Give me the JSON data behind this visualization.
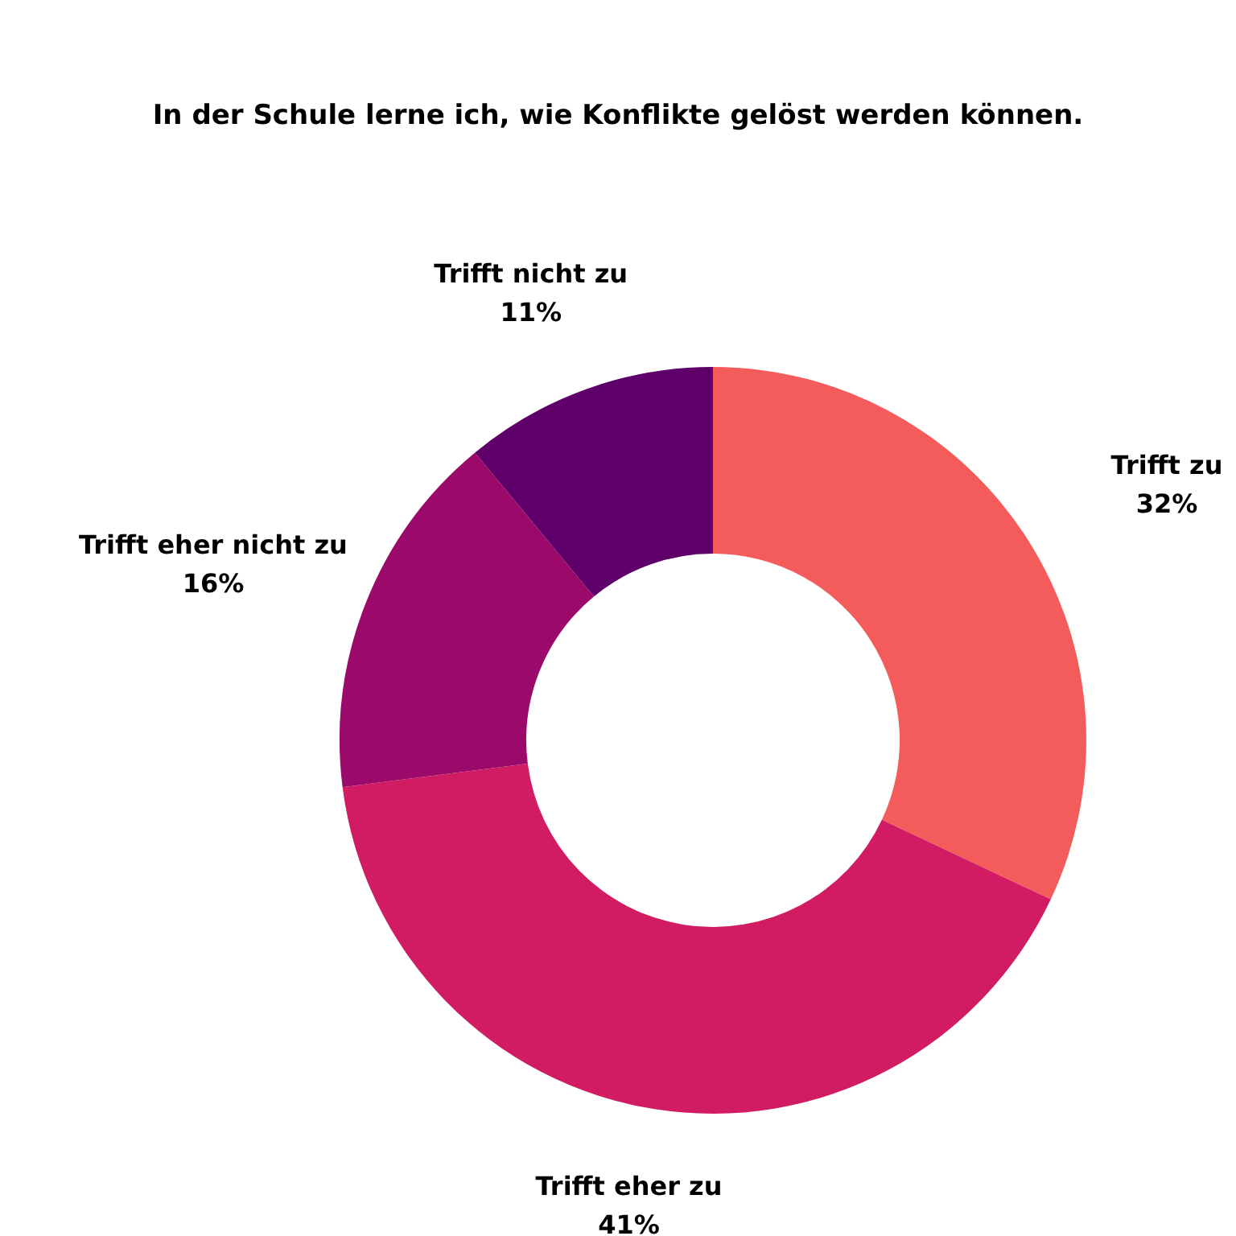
{
  "chart_data": {
    "type": "donut",
    "title": "In der Schule lerne ich, wie Konflikte gelöst werden können.",
    "categories": [
      "Trifft zu",
      "Trifft eher zu",
      "Trifft eher nicht zu",
      "Trifft nicht zu"
    ],
    "values": [
      32,
      41,
      16,
      11
    ],
    "colors": [
      "#f45b5b",
      "#d11c64",
      "#9b0a6a",
      "#5f006a"
    ],
    "value_labels": [
      "32%",
      "41%",
      "16%",
      "11%"
    ],
    "legend": false
  }
}
